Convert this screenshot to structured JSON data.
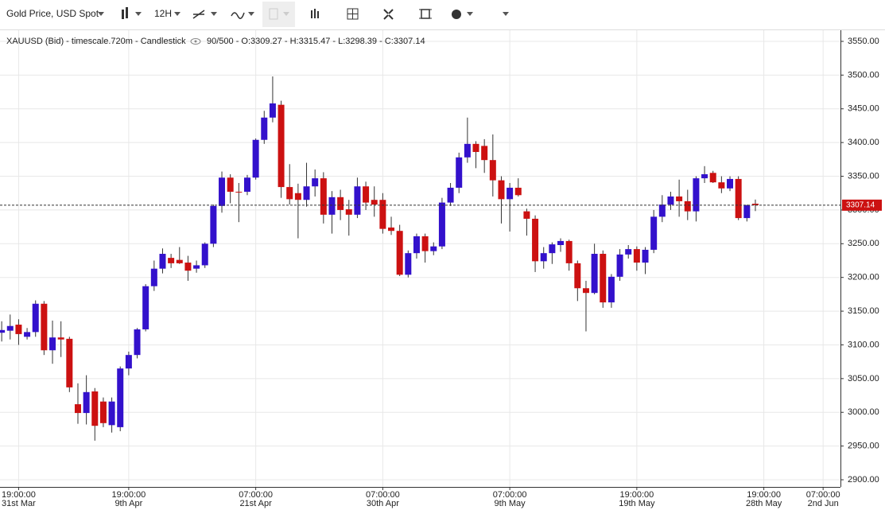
{
  "toolbar": {
    "instrument": "Gold Price, USD Spot",
    "interval": "12H"
  },
  "chart_data": {
    "type": "candlestick",
    "header": {
      "symbol": "XAUUSD (Bid) - timescale.720m - Candlestick",
      "info": "90/500 - O:3309.27 - H:3315.47 - L:3298.39 - C:3307.14"
    },
    "up_color": "#3311cc",
    "down_color": "#cc1111",
    "open": [
      3118,
      3121,
      3130,
      3112,
      3119,
      3161,
      3092,
      3111,
      3109,
      3012,
      2999,
      3031,
      3016,
      2981,
      2978,
      3065,
      3085,
      3123,
      3187,
      3213,
      3229,
      3226,
      3222,
      3213,
      3218,
      3250,
      3306,
      3348,
      3327,
      3327,
      3348,
      3404,
      3437,
      3456,
      3334,
      3325,
      3315,
      3335,
      3347,
      3293,
      3319,
      3301,
      3293,
      3335,
      3315,
      3315,
      3274,
      3269,
      3204,
      3236,
      3261,
      3239,
      3246,
      3311,
      3333,
      3378,
      3398,
      3395,
      3374,
      3344,
      3316,
      3333,
      3298,
      3287,
      3224,
      3236,
      3248,
      3254,
      3221,
      3184,
      3177,
      3235,
      3163,
      3201,
      3234,
      3242,
      3222,
      3241,
      3290,
      3308,
      3320,
      3313,
      3298,
      3347,
      3355,
      3341,
      3332,
      3346,
      3288,
      3309.27
    ],
    "high": [
      3135,
      3145,
      3138,
      3125,
      3166,
      3165,
      3136,
      3135,
      3112,
      3043,
      3055,
      3036,
      3022,
      3022,
      3068,
      3090,
      3125,
      3190,
      3225,
      3243,
      3235,
      3245,
      3232,
      3225,
      3252,
      3308,
      3357,
      3353,
      3340,
      3352,
      3406,
      3447,
      3498,
      3462,
      3368,
      3339,
      3370,
      3360,
      3356,
      3328,
      3330,
      3315,
      3348,
      3342,
      3335,
      3325,
      3290,
      3278,
      3240,
      3265,
      3265,
      3252,
      3318,
      3340,
      3385,
      3437,
      3402,
      3405,
      3412,
      3350,
      3340,
      3347,
      3302,
      3292,
      3245,
      3252,
      3258,
      3256,
      3225,
      3195,
      3250,
      3240,
      3205,
      3242,
      3248,
      3246,
      3245,
      3300,
      3322,
      3327,
      3345,
      3330,
      3350,
      3365,
      3358,
      3350,
      3350,
      3350,
      3308,
      3315.47
    ],
    "low": [
      3105,
      3108,
      3100,
      3108,
      3112,
      3085,
      3072,
      3082,
      3030,
      2983,
      2982,
      2958,
      2978,
      2970,
      2972,
      3055,
      3080,
      3120,
      3180,
      3206,
      3214,
      3220,
      3195,
      3207,
      3214,
      3245,
      3296,
      3310,
      3282,
      3322,
      3345,
      3398,
      3430,
      3318,
      3308,
      3258,
      3305,
      3320,
      3280,
      3265,
      3285,
      3262,
      3288,
      3300,
      3290,
      3265,
      3263,
      3202,
      3200,
      3228,
      3222,
      3233,
      3242,
      3306,
      3325,
      3370,
      3362,
      3355,
      3320,
      3280,
      3268,
      3320,
      3262,
      3208,
      3213,
      3220,
      3238,
      3210,
      3165,
      3120,
      3175,
      3155,
      3155,
      3195,
      3228,
      3210,
      3205,
      3236,
      3282,
      3300,
      3290,
      3285,
      3283,
      3340,
      3340,
      3325,
      3328,
      3285,
      3283,
      3298.39
    ],
    "close": [
      3122,
      3128,
      3116,
      3119,
      3161,
      3092,
      3111,
      3108,
      3037,
      2999,
      3030,
      2980,
      2984,
      3016,
      3065,
      3085,
      3123,
      3187,
      3213,
      3235,
      3221,
      3221,
      3210,
      3218,
      3250,
      3306,
      3348,
      3327,
      3326,
      3348,
      3404,
      3437,
      3458,
      3334,
      3316,
      3315,
      3335,
      3347,
      3293,
      3319,
      3300,
      3293,
      3335,
      3311,
      3308,
      3272,
      3269,
      3204,
      3236,
      3261,
      3239,
      3246,
      3311,
      3333,
      3378,
      3398,
      3386,
      3374,
      3344,
      3316,
      3333,
      3322,
      3287,
      3224,
      3236,
      3249,
      3254,
      3221,
      3184,
      3177,
      3235,
      3163,
      3201,
      3234,
      3242,
      3222,
      3241,
      3290,
      3308,
      3320,
      3313,
      3298,
      3347,
      3353,
      3341,
      3332,
      3346,
      3288,
      3307,
      3307.14
    ],
    "last_price": 3307.14,
    "xlim": [
      -0.2,
      99.05
    ],
    "xticks": [
      {
        "value": 2,
        "label": [
          "19:00:00",
          "31st Mar"
        ]
      },
      {
        "value": 15,
        "label": [
          "19:00:00",
          "9th Apr"
        ]
      },
      {
        "value": 30,
        "label": [
          "07:00:00",
          "21st Apr"
        ]
      },
      {
        "value": 45,
        "label": [
          "07:00:00",
          "30th Apr"
        ]
      },
      {
        "value": 60,
        "label": [
          "07:00:00",
          "9th May"
        ]
      },
      {
        "value": 75,
        "label": [
          "19:00:00",
          "19th May"
        ]
      },
      {
        "value": 90,
        "label": [
          "19:00:00",
          "28th May"
        ]
      },
      {
        "value": 97,
        "label": [
          "07:00:00",
          "2nd Jun"
        ]
      }
    ],
    "ylim": [
      2889.4,
      3566.5
    ],
    "yticks": [
      {
        "value": 2900,
        "label": "2900.00"
      },
      {
        "value": 2950,
        "label": "2950.00"
      },
      {
        "value": 3000,
        "label": "3000.00"
      },
      {
        "value": 3050,
        "label": "3050.00"
      },
      {
        "value": 3100,
        "label": "3100.00"
      },
      {
        "value": 3150,
        "label": "3150.00"
      },
      {
        "value": 3200,
        "label": "3200.00"
      },
      {
        "value": 3250,
        "label": "3250.00"
      },
      {
        "value": 3300,
        "label": "3300.00"
      },
      {
        "value": 3350,
        "label": "3350.00"
      },
      {
        "value": 3400,
        "label": "3400.00"
      },
      {
        "value": 3450,
        "label": "3450.00"
      },
      {
        "value": 3500,
        "label": "3500.00"
      },
      {
        "value": 3550,
        "label": "3550.00"
      }
    ],
    "grid": true
  }
}
